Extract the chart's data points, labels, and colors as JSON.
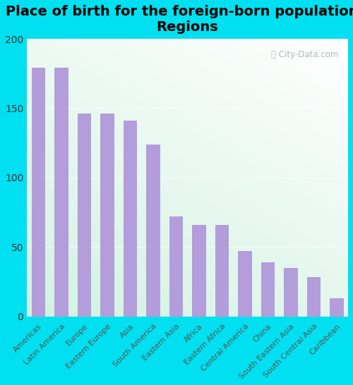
{
  "title": "Place of birth for the foreign-born population -\nRegions",
  "categories": [
    "Americas",
    "Latin America",
    "Europe",
    "Eastern Europe",
    "Asia",
    "South America",
    "Eastern Asia",
    "Africa",
    "Eastern Africa",
    "Central America",
    "China",
    "South Eastern Asia",
    "South Central Asia",
    "Caribbean"
  ],
  "values": [
    179,
    179,
    146,
    146,
    141,
    124,
    72,
    66,
    66,
    47,
    39,
    35,
    28,
    13
  ],
  "bar_color": "#b39ddb",
  "background_outer": "#00e0f0",
  "ylim": [
    0,
    200
  ],
  "yticks": [
    0,
    50,
    100,
    150,
    200
  ],
  "ytick_fontsize": 10,
  "title_fontsize": 14,
  "tick_label_fontsize": 8.0,
  "watermark": "City-Data.com"
}
